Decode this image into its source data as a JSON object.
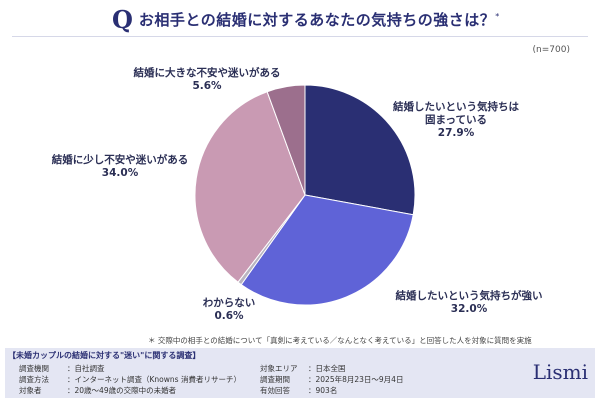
{
  "header": {
    "q_mark": "Q",
    "title": "お相手との結婚に対するあなたの気持ちの強さは？",
    "title_mark": "*"
  },
  "sample_size": "(n=700)",
  "chart_data": {
    "type": "pie",
    "slices": [
      {
        "label_lines": [
          "結婚したいという気持ちは",
          "固まっている"
        ],
        "value": 27.9,
        "pct_text": "27.9%",
        "color": "#2a2f73"
      },
      {
        "label_lines": [
          "結婚したいという気持ちが強い"
        ],
        "value": 32.0,
        "pct_text": "32.0%",
        "color": "#5f63d7"
      },
      {
        "label_lines": [
          "わからない"
        ],
        "value": 0.6,
        "pct_text": "0.6%",
        "color": "#b9b4c0"
      },
      {
        "label_lines": [
          "結婚に少し不安や迷いがある"
        ],
        "value": 34.0,
        "pct_text": "34.0%",
        "color": "#c99ab3"
      },
      {
        "label_lines": [
          "結婚に大きな不安や迷いがある"
        ],
        "value": 5.6,
        "pct_text": "5.6%",
        "color": "#9c6f8d"
      }
    ]
  },
  "footnote": "＊ 交際中の相手との結婚について「真剣に考えている／なんとなく考えている」と回答した人を対象に質問を実施",
  "survey": {
    "heading": "【未婚カップルの結婚に対する\"迷い\"に関する調査】",
    "rows_left": [
      {
        "key": "調査機関",
        "value": "：自社調査"
      },
      {
        "key": "調査方法",
        "value": "：インターネット調査（Knowns 消費者リサーチ）"
      },
      {
        "key": "対象者",
        "value": "：20歳〜49歳の交際中の未婚者"
      }
    ],
    "rows_right": [
      {
        "key": "対象エリア",
        "value": "：日本全国"
      },
      {
        "key": "調査期間",
        "value": "：2025年8月23日〜9月4日"
      },
      {
        "key": "有効回答",
        "value": "：903名"
      }
    ]
  },
  "logo": "Lismi"
}
